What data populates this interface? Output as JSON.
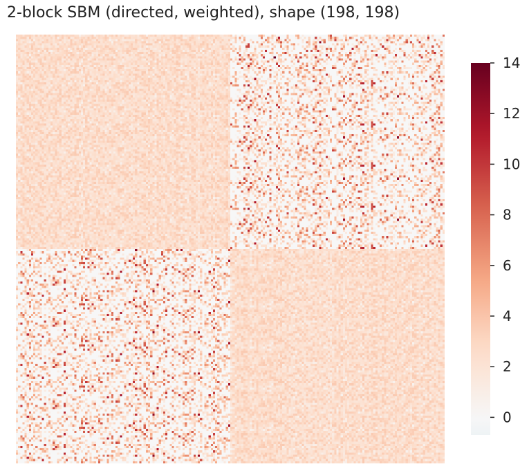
{
  "chart_data": {
    "type": "heatmap",
    "title": "2-block SBM (directed, weighted), shape (198, 198)",
    "shape": [
      198,
      198
    ],
    "blocks": [
      {
        "rows": [
          0,
          98
        ],
        "cols": [
          0,
          98
        ],
        "description": "dense within-block",
        "typical_value": 2.5
      },
      {
        "rows": [
          0,
          98
        ],
        "cols": [
          99,
          197
        ],
        "description": "sparse between-block",
        "typical_value": 0
      },
      {
        "rows": [
          99,
          197
        ],
        "cols": [
          0,
          98
        ],
        "description": "sparse between-block",
        "typical_value": 0
      },
      {
        "rows": [
          99,
          197
        ],
        "cols": [
          99,
          197
        ],
        "description": "dense within-block",
        "typical_value": 2.5
      }
    ],
    "colormap": "RdBu_r",
    "colorbar": {
      "vmin": -0.7,
      "vmax": 14,
      "ticks": [
        0,
        2,
        4,
        6,
        8,
        10,
        12,
        14
      ],
      "tick_labels": [
        "0",
        "2",
        "4",
        "6",
        "8",
        "10",
        "12",
        "14"
      ]
    },
    "xlabel": "",
    "ylabel": "",
    "grid": false,
    "axis_ticks": false
  }
}
